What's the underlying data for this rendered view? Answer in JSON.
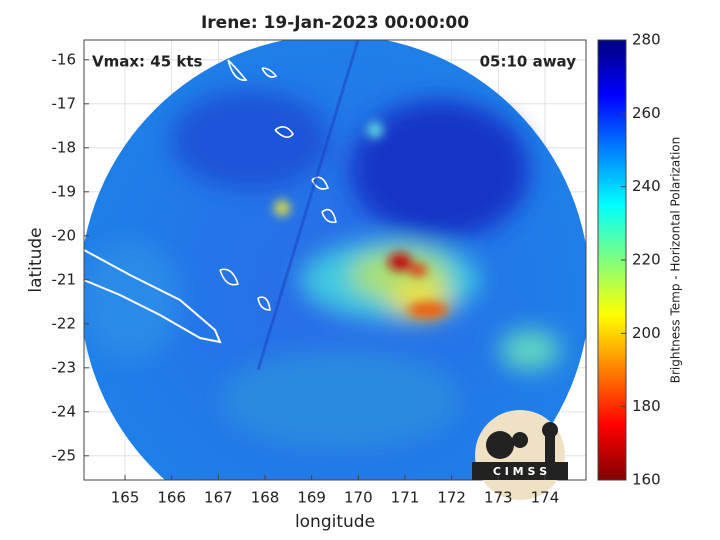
{
  "chart_data": {
    "type": "heatmap",
    "title": "Irene: 19-Jan-2023 00:00:00",
    "xlabel": "longitude",
    "ylabel": "latitude",
    "xlim": [
      164.12,
      174.88
    ],
    "ylim": [
      -25.55,
      -15.55
    ],
    "xticks": [
      165,
      166,
      167,
      168,
      169,
      170,
      171,
      172,
      173,
      174
    ],
    "yticks": [
      -16,
      -17,
      -18,
      -19,
      -20,
      -21,
      -22,
      -23,
      -24,
      -25
    ],
    "grid": true,
    "annotations": [
      "Vmax: 45 kts",
      "05:10 away"
    ],
    "logo_text": "C I M S S",
    "colorbar": {
      "label": "Brightness Temp - Horizontal Polarization",
      "lim": [
        160,
        280
      ],
      "ticks": [
        160,
        180,
        200,
        220,
        240,
        260,
        280
      ],
      "colormap": "jet"
    }
  }
}
